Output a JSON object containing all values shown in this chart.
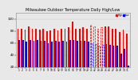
{
  "title": "Milwaukee Outdoor Temperature Daily High/Low",
  "background_color": "#e8e8e8",
  "plot_bg_color": "#e8e8e8",
  "n_days": 31,
  "highs": [
    83,
    84,
    82,
    87,
    84,
    84,
    82,
    83,
    80,
    81,
    83,
    81,
    84,
    83,
    86,
    96,
    84,
    83,
    86,
    84,
    90,
    88,
    84,
    86,
    88,
    87,
    83,
    84,
    78,
    82,
    75
  ],
  "lows": [
    65,
    65,
    62,
    65,
    63,
    65,
    63,
    63,
    60,
    62,
    63,
    62,
    63,
    62,
    65,
    65,
    63,
    63,
    64,
    62,
    60,
    58,
    55,
    57,
    58,
    57,
    55,
    56,
    42,
    50,
    22
  ],
  "high_color": "#ff0000",
  "low_color": "#0000ff",
  "dashed_indices": [
    20,
    21,
    22,
    23
  ],
  "ylim_min": 20,
  "ylim_max": 110,
  "yticks": [
    20,
    40,
    60,
    80,
    100
  ],
  "legend_high_label": "High",
  "legend_low_label": "Low",
  "title_fontsize": 3.5
}
